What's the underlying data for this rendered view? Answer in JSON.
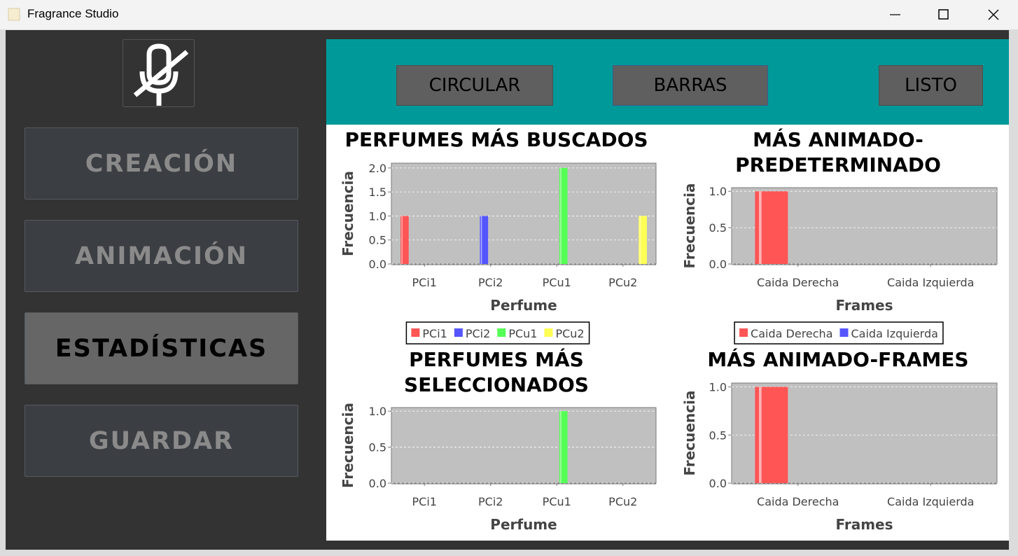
{
  "window": {
    "title": "Fragrance Studio"
  },
  "sidebar": {
    "buttons": [
      "CREACIÓN",
      "ANIMACIÓN",
      "ESTADÍSTICAS",
      "GUARDAR"
    ],
    "selected": 2
  },
  "toolbar": {
    "buttons": [
      "CIRCULAR",
      "BARRAS",
      "LISTO"
    ]
  },
  "chart_data": [
    {
      "type": "bar",
      "title": "PERFUMES MÁS BUSCADOS",
      "x_label": "Perfume",
      "y_label": "Frecuencia",
      "categories": [
        "PCi1",
        "PCi2",
        "PCu1",
        "PCu2"
      ],
      "series": [
        {
          "name": "PCi1",
          "color": "#ff5555",
          "values": [
            1,
            null,
            null,
            null
          ]
        },
        {
          "name": "PCi2",
          "color": "#5555ff",
          "values": [
            null,
            1,
            null,
            null
          ]
        },
        {
          "name": "PCu1",
          "color": "#55ff55",
          "values": [
            null,
            null,
            2,
            null
          ]
        },
        {
          "name": "PCu2",
          "color": "#ffff55",
          "values": [
            null,
            null,
            null,
            1
          ]
        }
      ],
      "ylim": [
        0,
        2.1
      ],
      "yticks": [
        {
          "value": 0,
          "label": "0.0"
        },
        0.5,
        {
          "value": 1,
          "label": "1.0"
        },
        1.5,
        {
          "value": 2,
          "label": "2.0"
        }
      ],
      "grid": true
    },
    {
      "type": "bar",
      "title": "MÁS ANIMADO-PREDETERMINADO",
      "x_label": "Frames",
      "y_label": "Frecuencia",
      "categories": [
        "Caida Derecha",
        "Caida Izquierda"
      ],
      "series": [
        {
          "name": "Caida Derecha",
          "color": "#ff5555",
          "values": [
            1,
            null
          ]
        },
        {
          "name": "Caida Izquierda",
          "color": "#5555ff",
          "values": [
            null,
            null
          ]
        }
      ],
      "ylim": [
        0,
        1.05
      ],
      "yticks": [
        {
          "value": 0,
          "label": "0.0"
        },
        0.5,
        {
          "value": 1,
          "label": "1.0"
        }
      ],
      "grid": true
    },
    {
      "type": "bar",
      "title": "PERFUMES MÁS SELECCIONADOS",
      "x_label": "Perfume",
      "y_label": "Frecuencia",
      "categories": [
        "PCi1",
        "PCi2",
        "PCu1",
        "PCu2"
      ],
      "series": [
        {
          "color": "#ff5555",
          "values": [
            null,
            null,
            null,
            null
          ]
        },
        {
          "color": "#5555ff",
          "values": [
            null,
            null,
            null,
            null
          ]
        },
        {
          "color": "#55ff55",
          "values": [
            null,
            null,
            1,
            null
          ]
        },
        {
          "color": "#ffff55",
          "values": [
            null,
            null,
            null,
            null
          ]
        }
      ],
      "ylim": [
        0,
        1.05
      ],
      "yticks": [
        {
          "value": 0,
          "label": "0.0"
        },
        0.5,
        {
          "value": 1,
          "label": "1.0"
        }
      ],
      "grid": true
    },
    {
      "type": "bar",
      "title": "MÁS ANIMADO-FRAMES",
      "x_label": "Frames",
      "y_label": "Frecuencia",
      "categories": [
        "Caida Derecha",
        "Caida Izquierda"
      ],
      "series": [
        {
          "color": "#ff5555",
          "values": [
            1,
            null
          ]
        },
        {
          "color": "#5555ff",
          "values": [
            null,
            null
          ]
        }
      ],
      "ylim": [
        0,
        1.04
      ],
      "yticks": [
        {
          "value": 0,
          "label": "0.0"
        },
        0.5,
        {
          "value": 1,
          "label": "1.0"
        }
      ],
      "grid": true
    }
  ]
}
